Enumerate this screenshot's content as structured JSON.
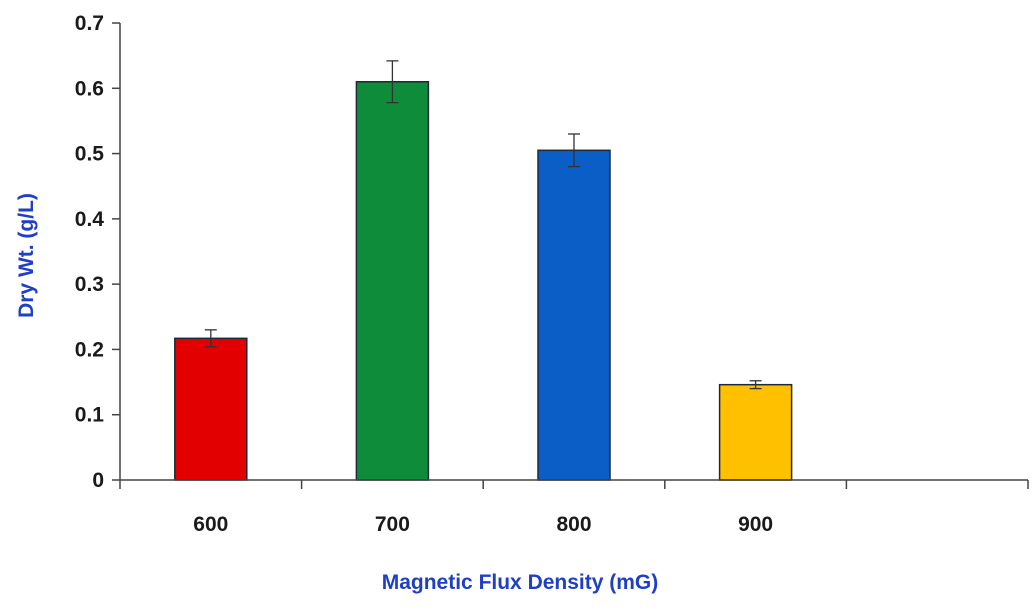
{
  "chart_data": {
    "type": "bar",
    "title": "",
    "xlabel": "Magnetic Flux Density (mG)",
    "ylabel": "Dry Wt. (g/L)",
    "categories": [
      "600",
      "700",
      "800",
      "900"
    ],
    "values": [
      0.217,
      0.61,
      0.505,
      0.146
    ],
    "errors": [
      0.013,
      0.032,
      0.025,
      0.006
    ],
    "colors": [
      "#e20000",
      "#0e8c3a",
      "#0a5ec6",
      "#ffc000"
    ],
    "ylim": [
      0,
      0.7
    ],
    "yticks": [
      "0",
      "0.1",
      "0.2",
      "0.3",
      "0.4",
      "0.5",
      "0.6",
      "0.7"
    ],
    "x_slots": 5,
    "grid": false,
    "legend": "none"
  }
}
